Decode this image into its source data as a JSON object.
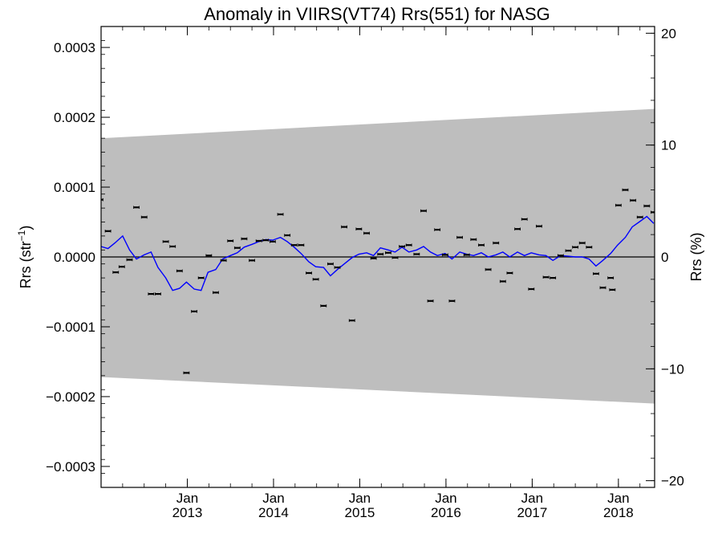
{
  "chart_data": {
    "type": "scatter",
    "title": "Anomaly in VIIRS(VT74) Rrs(551) for NASG",
    "ylabel_left": "Rrs (str",
    "ylabel_left_sup": "−1",
    "ylabel_left_tail": ")",
    "ylabel_right": "Rrs (%)",
    "x_range": [
      2012.0,
      2018.42
    ],
    "y_range_left": [
      -0.00033,
      0.00033
    ],
    "y_range_right": [
      -20.6,
      20.6
    ],
    "y_ticks_left": [
      {
        "value": 0.0003,
        "label": "0.0003"
      },
      {
        "value": 0.0002,
        "label": "0.0002"
      },
      {
        "value": 0.0001,
        "label": "0.0001"
      },
      {
        "value": 0.0,
        "label": "0.0000"
      },
      {
        "value": -0.0001,
        "label": "−0.0001"
      },
      {
        "value": -0.0002,
        "label": "−0.0002"
      },
      {
        "value": -0.0003,
        "label": "−0.0003"
      }
    ],
    "y_ticks_right": [
      {
        "value": 20,
        "label": "20"
      },
      {
        "value": 10,
        "label": "10"
      },
      {
        "value": 0,
        "label": "0"
      },
      {
        "value": -10,
        "label": "−10"
      },
      {
        "value": -20,
        "label": "−20"
      }
    ],
    "x_ticks": [
      {
        "value": 2013.0,
        "month": "Jan",
        "year": "2013"
      },
      {
        "value": 2014.0,
        "month": "Jan",
        "year": "2014"
      },
      {
        "value": 2015.0,
        "month": "Jan",
        "year": "2015"
      },
      {
        "value": 2016.0,
        "month": "Jan",
        "year": "2016"
      },
      {
        "value": 2017.0,
        "month": "Jan",
        "year": "2017"
      },
      {
        "value": 2018.0,
        "month": "Jan",
        "year": "2018"
      }
    ],
    "uncertainty_band": {
      "color": "#bebebe",
      "upper": [
        [
          2012.0,
          0.00017
        ],
        [
          2018.42,
          0.000212
        ]
      ],
      "lower": [
        [
          2012.0,
          -0.000172
        ],
        [
          2018.42,
          -0.00021
        ]
      ]
    },
    "zero_line": true,
    "monthly_anomalies": [
      [
        2011.99,
        8.2e-05
      ],
      [
        2012.08,
        3.7e-05
      ],
      [
        2012.17,
        -2.2e-05
      ],
      [
        2012.24,
        -1.4e-05
      ],
      [
        2012.33,
        -4e-06
      ],
      [
        2012.41,
        7.1e-05
      ],
      [
        2012.5,
        5.7e-05
      ],
      [
        2012.58,
        -5.3e-05
      ],
      [
        2012.66,
        -5.3e-05
      ],
      [
        2012.75,
        2.2e-05
      ],
      [
        2012.83,
        1.5e-05
      ],
      [
        2012.91,
        -2e-05
      ],
      [
        2012.99,
        -0.000166
      ],
      [
        2013.08,
        -7.8e-05
      ],
      [
        2013.16,
        -3e-05
      ],
      [
        2013.25,
        2e-06
      ],
      [
        2013.33,
        -5.1e-05
      ],
      [
        2013.42,
        -5e-06
      ],
      [
        2013.5,
        2.3e-05
      ],
      [
        2013.58,
        1.3e-05
      ],
      [
        2013.66,
        2.6e-05
      ],
      [
        2013.75,
        -5e-06
      ],
      [
        2013.83,
        2.3e-05
      ],
      [
        2013.91,
        2.4e-05
      ],
      [
        2013.99,
        2.2e-05
      ],
      [
        2014.08,
        6.1e-05
      ],
      [
        2014.16,
        3.1e-05
      ],
      [
        2014.24,
        1.7e-05
      ],
      [
        2014.32,
        1.7e-05
      ],
      [
        2014.41,
        -2.3e-05
      ],
      [
        2014.49,
        -3.2e-05
      ],
      [
        2014.58,
        -7e-05
      ],
      [
        2014.66,
        -1e-05
      ],
      [
        2014.74,
        -1.5e-05
      ],
      [
        2014.82,
        4.3e-05
      ],
      [
        2014.91,
        -9.1e-05
      ],
      [
        2014.99,
        4e-05
      ],
      [
        2015.08,
        3.4e-05
      ],
      [
        2015.16,
        -2e-06
      ],
      [
        2015.24,
        4e-06
      ],
      [
        2015.33,
        6e-06
      ],
      [
        2015.41,
        -1e-06
      ],
      [
        2015.49,
        1.5e-05
      ],
      [
        2015.57,
        1.7e-05
      ],
      [
        2015.66,
        4e-06
      ],
      [
        2015.74,
        6.6e-05
      ],
      [
        2015.82,
        -6.3e-05
      ],
      [
        2015.9,
        3.9e-05
      ],
      [
        2015.99,
        3e-06
      ],
      [
        2016.07,
        -6.3e-05
      ],
      [
        2016.16,
        2.8e-05
      ],
      [
        2016.24,
        3e-06
      ],
      [
        2016.32,
        2.5e-05
      ],
      [
        2016.41,
        1.7e-05
      ],
      [
        2016.49,
        -1.8e-05
      ],
      [
        2016.58,
        2e-05
      ],
      [
        2016.66,
        -3.5e-05
      ],
      [
        2016.74,
        -2.3e-05
      ],
      [
        2016.83,
        4e-05
      ],
      [
        2016.91,
        5.4e-05
      ],
      [
        2016.99,
        -4.6e-05
      ],
      [
        2017.08,
        4.4e-05
      ],
      [
        2017.16,
        -2.9e-05
      ],
      [
        2017.24,
        -3e-05
      ],
      [
        2017.33,
        2e-06
      ],
      [
        2017.42,
        9e-06
      ],
      [
        2017.5,
        1.4e-05
      ],
      [
        2017.58,
        2e-05
      ],
      [
        2017.66,
        1.4e-05
      ],
      [
        2017.74,
        -2.4e-05
      ],
      [
        2017.82,
        -4.4e-05
      ],
      [
        2017.91,
        -3e-05
      ],
      [
        2017.93,
        -4.7e-05
      ],
      [
        2018.0,
        7.4e-05
      ],
      [
        2018.08,
        9.6e-05
      ],
      [
        2018.17,
        8.1e-05
      ],
      [
        2018.25,
        5.7e-05
      ],
      [
        2018.33,
        7.3e-05
      ],
      [
        2018.41,
        6.4e-05
      ]
    ],
    "smoothed_line": {
      "color": "#0000ff",
      "points": [
        [
          2012.0,
          1.5e-05
        ],
        [
          2012.08,
          1.2e-05
        ],
        [
          2012.16,
          2e-05
        ],
        [
          2012.25,
          3e-05
        ],
        [
          2012.33,
          1e-05
        ],
        [
          2012.41,
          -3e-06
        ],
        [
          2012.5,
          3e-06
        ],
        [
          2012.58,
          7e-06
        ],
        [
          2012.66,
          -1.5e-05
        ],
        [
          2012.75,
          -3e-05
        ],
        [
          2012.83,
          -4.8e-05
        ],
        [
          2012.91,
          -4.5e-05
        ],
        [
          2012.99,
          -3.6e-05
        ],
        [
          2013.08,
          -4.6e-05
        ],
        [
          2013.16,
          -4.8e-05
        ],
        [
          2013.24,
          -2.2e-05
        ],
        [
          2013.33,
          -1.8e-05
        ],
        [
          2013.41,
          -3e-06
        ],
        [
          2013.5,
          2e-06
        ],
        [
          2013.58,
          6e-06
        ],
        [
          2013.66,
          1.4e-05
        ],
        [
          2013.75,
          1.8e-05
        ],
        [
          2013.83,
          2.2e-05
        ],
        [
          2013.91,
          2.5e-05
        ],
        [
          2013.99,
          2.4e-05
        ],
        [
          2014.08,
          2.8e-05
        ],
        [
          2014.16,
          2.2e-05
        ],
        [
          2014.24,
          1.4e-05
        ],
        [
          2014.32,
          5e-06
        ],
        [
          2014.41,
          -7e-06
        ],
        [
          2014.49,
          -1.4e-05
        ],
        [
          2014.58,
          -1.5e-05
        ],
        [
          2014.66,
          -2.7e-05
        ],
        [
          2014.74,
          -1.8e-05
        ],
        [
          2014.82,
          -1e-05
        ],
        [
          2014.91,
          -1e-06
        ],
        [
          2014.99,
          4e-06
        ],
        [
          2015.08,
          6e-06
        ],
        [
          2015.16,
          2e-06
        ],
        [
          2015.24,
          1.3e-05
        ],
        [
          2015.33,
          1e-05
        ],
        [
          2015.41,
          7e-06
        ],
        [
          2015.49,
          1.4e-05
        ],
        [
          2015.57,
          7e-06
        ],
        [
          2015.66,
          1e-05
        ],
        [
          2015.74,
          1.5e-05
        ],
        [
          2015.82,
          7e-06
        ],
        [
          2015.9,
          2e-06
        ],
        [
          2015.99,
          5e-06
        ],
        [
          2016.07,
          -3e-06
        ],
        [
          2016.16,
          7e-06
        ],
        [
          2016.24,
          4e-06
        ],
        [
          2016.32,
          2e-06
        ],
        [
          2016.41,
          6e-06
        ],
        [
          2016.49,
          0.0
        ],
        [
          2016.58,
          3e-06
        ],
        [
          2016.66,
          7e-06
        ],
        [
          2016.74,
          0.0
        ],
        [
          2016.83,
          7e-06
        ],
        [
          2016.91,
          2e-06
        ],
        [
          2016.99,
          6e-06
        ],
        [
          2017.08,
          3e-06
        ],
        [
          2017.16,
          2e-06
        ],
        [
          2017.24,
          -5e-06
        ],
        [
          2017.33,
          2e-06
        ],
        [
          2017.42,
          1e-06
        ],
        [
          2017.5,
          0.0
        ],
        [
          2017.58,
          0.0
        ],
        [
          2017.66,
          -3e-06
        ],
        [
          2017.74,
          -1.3e-05
        ],
        [
          2017.82,
          -5e-06
        ],
        [
          2017.91,
          5e-06
        ],
        [
          2017.99,
          1.7e-05
        ],
        [
          2018.08,
          2.8e-05
        ],
        [
          2018.16,
          4.3e-05
        ],
        [
          2018.24,
          5e-05
        ],
        [
          2018.33,
          5.8e-05
        ],
        [
          2018.41,
          4.8e-05
        ]
      ]
    },
    "grid": false
  }
}
